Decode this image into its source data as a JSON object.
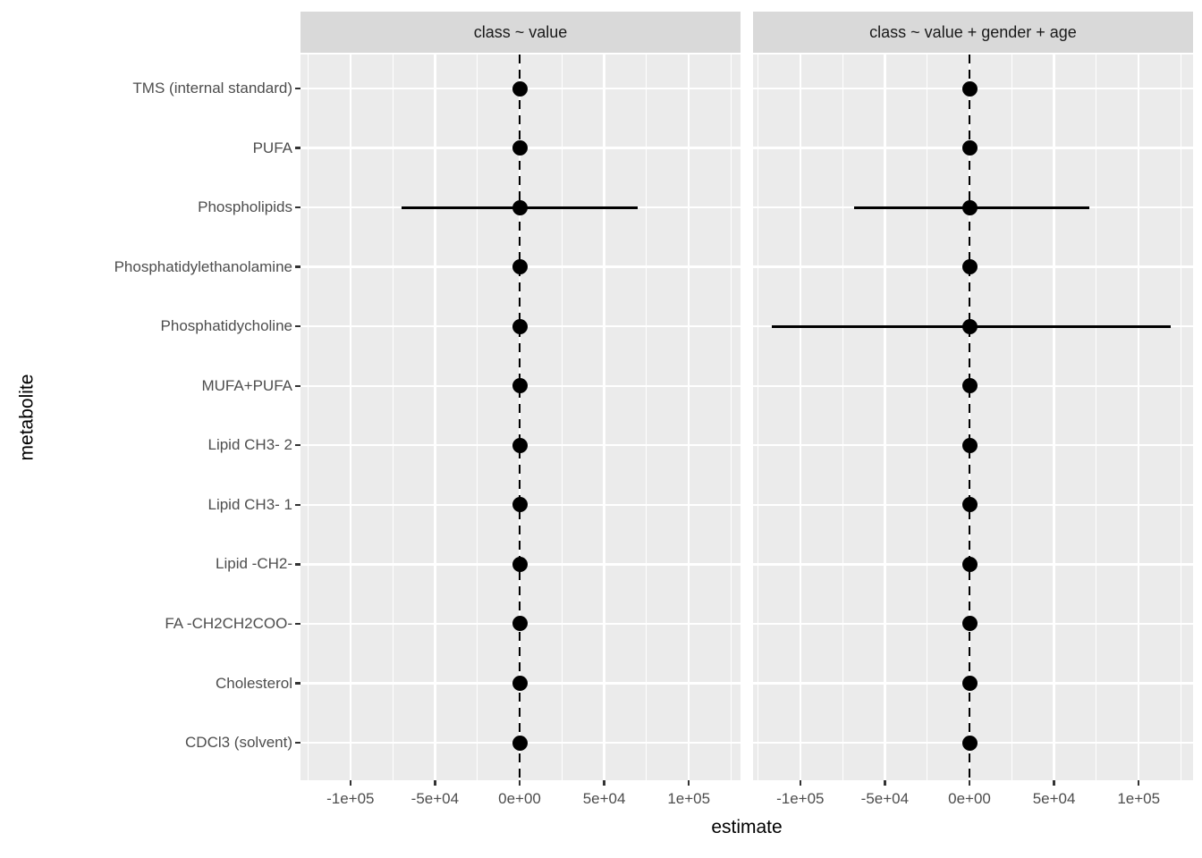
{
  "figure": {
    "x_axis_title": "estimate",
    "y_axis_title": "metabolite"
  },
  "colors": {
    "panel_background": "#ebebeb",
    "strip_background": "#d9d9d9",
    "gridline": "#ffffff",
    "axis_text": "#4d4d4d",
    "strip_text": "#1a1a1a",
    "axis_title_text": "#000000",
    "tick_mark": "#333333",
    "point": "#000000",
    "reference_line": "#000000"
  },
  "chart_data": {
    "type": "scatter",
    "variant": "faceted-forest-plot-point-with-ci",
    "title": "",
    "xlabel": "estimate",
    "ylabel": "metabolite",
    "grid": true,
    "legend": "none",
    "xlim": [
      -130000,
      130000
    ],
    "reference_line": {
      "x": 0,
      "style": "dashed"
    },
    "x_major_ticks": [
      {
        "label": "-1e+05",
        "value": -100000
      },
      {
        "label": "-5e+04",
        "value": -50000
      },
      {
        "label": "0e+00",
        "value": 0
      },
      {
        "label": "5e+04",
        "value": 50000
      },
      {
        "label": "1e+05",
        "value": 100000
      }
    ],
    "x_minor_gridlines": [
      -125000,
      -75000,
      -25000,
      25000,
      75000,
      125000
    ],
    "categories": [
      "TMS (internal standard)",
      "PUFA",
      "Phospholipids",
      "Phosphatidylethanolamine",
      "Phosphatidycholine",
      "MUFA+PUFA",
      "Lipid CH3- 2",
      "Lipid CH3- 1",
      "Lipid -CH2-",
      "FA -CH2CH2COO-",
      "Cholesterol",
      "CDCl3 (solvent)"
    ],
    "facets": [
      {
        "label": "class ~ value",
        "points": [
          {
            "metabolite": "TMS (internal standard)",
            "estimate": 0,
            "conf_low": 0,
            "conf_high": 0
          },
          {
            "metabolite": "PUFA",
            "estimate": 0,
            "conf_low": 0,
            "conf_high": 0
          },
          {
            "metabolite": "Phospholipids",
            "estimate": 0,
            "conf_low": -70000,
            "conf_high": 70000
          },
          {
            "metabolite": "Phosphatidylethanolamine",
            "estimate": 0,
            "conf_low": 0,
            "conf_high": 0
          },
          {
            "metabolite": "Phosphatidycholine",
            "estimate": 0,
            "conf_low": 0,
            "conf_high": 0
          },
          {
            "metabolite": "MUFA+PUFA",
            "estimate": 0,
            "conf_low": 0,
            "conf_high": 0
          },
          {
            "metabolite": "Lipid CH3- 2",
            "estimate": 0,
            "conf_low": 0,
            "conf_high": 0
          },
          {
            "metabolite": "Lipid CH3- 1",
            "estimate": 0,
            "conf_low": 0,
            "conf_high": 0
          },
          {
            "metabolite": "Lipid -CH2-",
            "estimate": 0,
            "conf_low": 0,
            "conf_high": 0
          },
          {
            "metabolite": "FA -CH2CH2COO-",
            "estimate": 0,
            "conf_low": 0,
            "conf_high": 0
          },
          {
            "metabolite": "Cholesterol",
            "estimate": 0,
            "conf_low": 0,
            "conf_high": 0
          },
          {
            "metabolite": "CDCl3 (solvent)",
            "estimate": 0,
            "conf_low": 0,
            "conf_high": 0
          }
        ]
      },
      {
        "label": "class ~ value + gender + age",
        "points": [
          {
            "metabolite": "TMS (internal standard)",
            "estimate": 0,
            "conf_low": 0,
            "conf_high": 0
          },
          {
            "metabolite": "PUFA",
            "estimate": 0,
            "conf_low": 0,
            "conf_high": 0
          },
          {
            "metabolite": "Phospholipids",
            "estimate": 0,
            "conf_low": -68000,
            "conf_high": 71000
          },
          {
            "metabolite": "Phosphatidylethanolamine",
            "estimate": 0,
            "conf_low": 0,
            "conf_high": 0
          },
          {
            "metabolite": "Phosphatidycholine",
            "estimate": 0,
            "conf_low": -117000,
            "conf_high": 119000
          },
          {
            "metabolite": "MUFA+PUFA",
            "estimate": 0,
            "conf_low": 0,
            "conf_high": 0
          },
          {
            "metabolite": "Lipid CH3- 2",
            "estimate": 0,
            "conf_low": 0,
            "conf_high": 0
          },
          {
            "metabolite": "Lipid CH3- 1",
            "estimate": 0,
            "conf_low": 0,
            "conf_high": 0
          },
          {
            "metabolite": "Lipid -CH2-",
            "estimate": 0,
            "conf_low": 0,
            "conf_high": 0
          },
          {
            "metabolite": "FA -CH2CH2COO-",
            "estimate": 0,
            "conf_low": 0,
            "conf_high": 0
          },
          {
            "metabolite": "Cholesterol",
            "estimate": 0,
            "conf_low": 0,
            "conf_high": 0
          },
          {
            "metabolite": "CDCl3 (solvent)",
            "estimate": 0,
            "conf_low": 0,
            "conf_high": 0
          }
        ]
      }
    ]
  }
}
